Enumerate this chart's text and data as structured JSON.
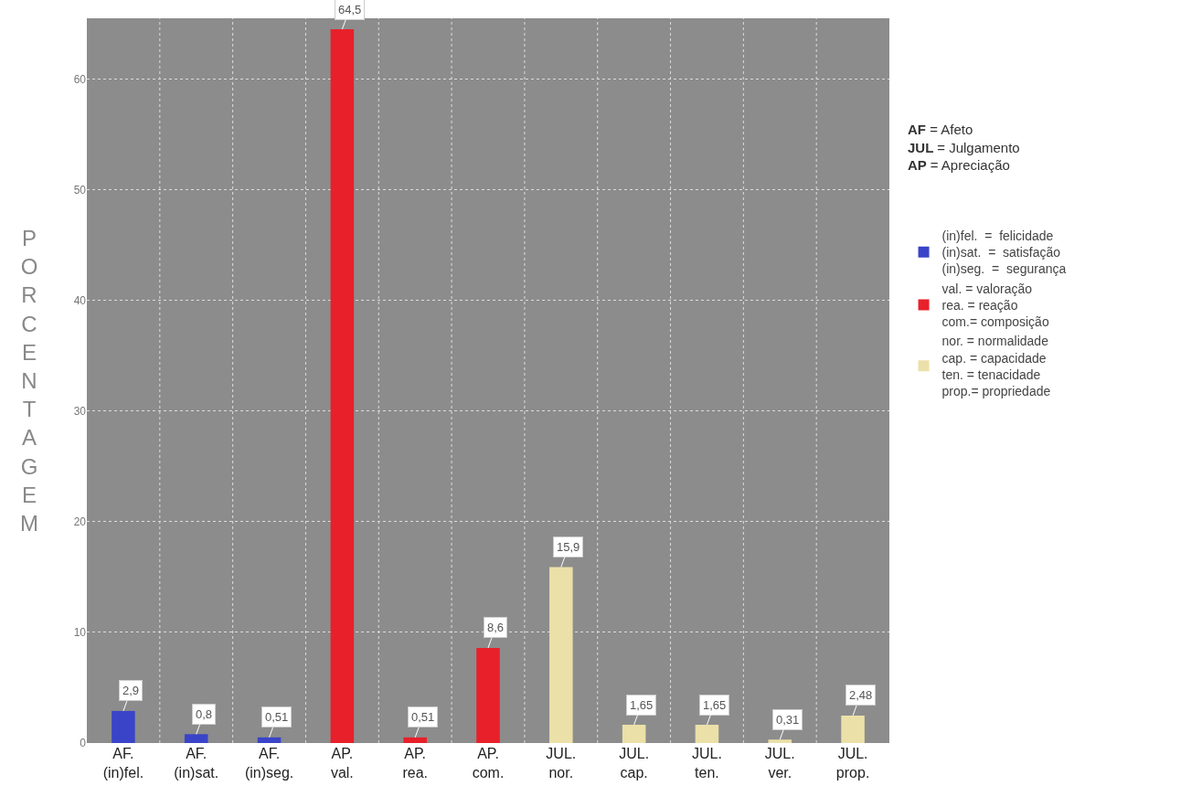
{
  "chart_data": {
    "type": "bar",
    "ylabel": "PORCENTAGEM",
    "categories": [
      "AF.\n(in)fel.",
      "AF.\n(in)sat.",
      "AF.\n(in)seg.",
      "AP.\nval.",
      "AP.\nrea.",
      "AP.\ncom.",
      "JUL.\nnor.",
      "JUL.\ncap.",
      "JUL.\nten.",
      "JUL.\nver.",
      "JUL.\nprop."
    ],
    "series": [
      {
        "name": "(in)fel.  =  felicidade\n(in)sat.  =  satisfação\n(in)seg.  =  segurança",
        "color": "#3a44c8",
        "values": [
          2.9,
          0.8,
          0.51,
          null,
          null,
          null,
          null,
          null,
          null,
          null,
          null
        ],
        "value_labels": [
          "2,9",
          "0,8",
          "0,51",
          null,
          null,
          null,
          null,
          null,
          null,
          null,
          null
        ]
      },
      {
        "name": "val. = valoração\nrea. = reação\ncom.= composição",
        "color": "#e8202a",
        "values": [
          null,
          null,
          null,
          64.5,
          0.51,
          8.6,
          null,
          null,
          null,
          null,
          null
        ],
        "value_labels": [
          null,
          null,
          null,
          "64,5",
          "0,51",
          "8,6",
          null,
          null,
          null,
          null,
          null
        ]
      },
      {
        "name": "nor. = normalidade\ncap. = capacidade\nten. = tenacidade\nprop.= propriedade",
        "color": "#ebe0a8",
        "values": [
          null,
          null,
          null,
          null,
          null,
          null,
          15.9,
          1.65,
          1.65,
          0.31,
          2.48
        ],
        "value_labels": [
          null,
          null,
          null,
          null,
          null,
          null,
          "15,9",
          "1,65",
          "1,65",
          "0,31",
          "2,48"
        ]
      }
    ],
    "ylim": [
      0,
      65.5
    ],
    "yticks": [
      0,
      10,
      20,
      30,
      40,
      50,
      60
    ],
    "grid": true,
    "legend": "right",
    "annotations": [
      "AF = Afeto\nJUL = Julgamento\nAP = Apreciação"
    ]
  }
}
